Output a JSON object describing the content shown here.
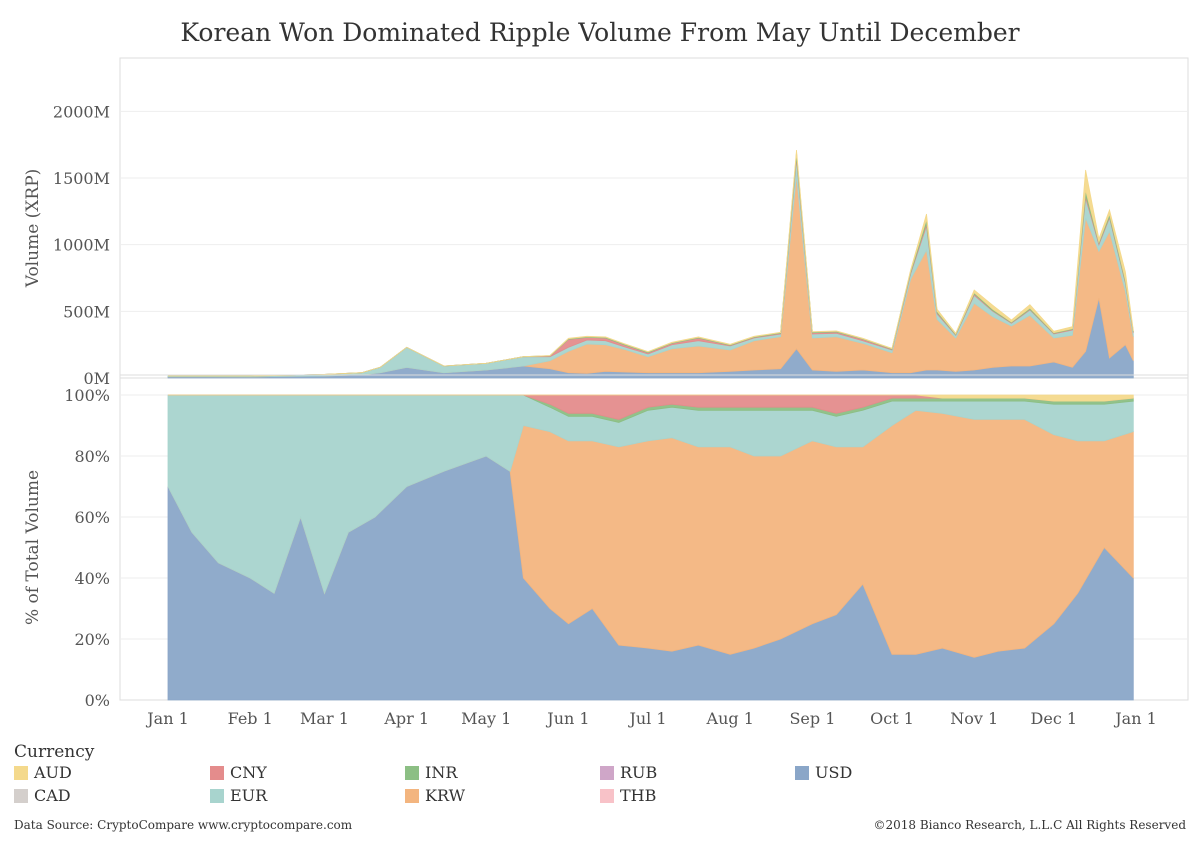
{
  "title": "Korean Won Dominated Ripple Volume From May Until December",
  "chart_data": [
    {
      "type": "area",
      "ylabel": "Volume (XRP)",
      "ytick_labels": [
        "0M",
        "500M",
        "1000M",
        "1500M",
        "2000M"
      ],
      "ylim": [
        0,
        2250
      ],
      "unit": "M",
      "x": [
        "2018-01-01",
        "2018-01-15",
        "2018-02-01",
        "2018-02-15",
        "2018-03-01",
        "2018-03-15",
        "2018-03-22",
        "2018-04-01",
        "2018-04-15",
        "2018-05-01",
        "2018-05-15",
        "2018-05-25",
        "2018-06-01",
        "2018-06-08",
        "2018-06-15",
        "2018-06-22",
        "2018-07-01",
        "2018-07-10",
        "2018-07-20",
        "2018-08-01",
        "2018-08-10",
        "2018-08-20",
        "2018-08-26",
        "2018-09-01",
        "2018-09-10",
        "2018-09-20",
        "2018-10-01",
        "2018-10-08",
        "2018-10-14",
        "2018-10-18",
        "2018-10-25",
        "2018-11-01",
        "2018-11-08",
        "2018-11-15",
        "2018-11-22",
        "2018-12-01",
        "2018-12-08",
        "2018-12-13",
        "2018-12-18",
        "2018-12-22",
        "2018-12-28",
        "2018-12-31"
      ],
      "series": [
        {
          "name": "USD",
          "color": "#8aa6c8",
          "values": [
            10,
            10,
            8,
            12,
            15,
            25,
            40,
            80,
            40,
            60,
            90,
            70,
            40,
            35,
            50,
            45,
            40,
            40,
            40,
            50,
            60,
            70,
            220,
            60,
            50,
            60,
            40,
            40,
            60,
            60,
            50,
            60,
            80,
            90,
            90,
            120,
            80,
            200,
            600,
            150,
            250,
            130
          ]
        },
        {
          "name": "KRW",
          "color": "#f3b57f",
          "values": [
            0,
            0,
            0,
            0,
            0,
            0,
            0,
            0,
            0,
            0,
            0,
            60,
            160,
            220,
            200,
            170,
            120,
            180,
            200,
            160,
            220,
            240,
            1300,
            240,
            260,
            200,
            150,
            700,
            900,
            380,
            250,
            500,
            380,
            300,
            380,
            180,
            240,
            1000,
            350,
            950,
            400,
            180
          ]
        },
        {
          "name": "EUR",
          "color": "#a8d4ce",
          "values": [
            5,
            5,
            7,
            8,
            12,
            15,
            40,
            150,
            50,
            50,
            70,
            30,
            30,
            30,
            30,
            20,
            20,
            30,
            40,
            30,
            20,
            20,
            120,
            30,
            25,
            20,
            20,
            40,
            180,
            40,
            20,
            60,
            40,
            20,
            40,
            30,
            40,
            150,
            50,
            100,
            60,
            30
          ]
        },
        {
          "name": "CNY",
          "color": "#e48c8c",
          "values": [
            0,
            0,
            0,
            0,
            0,
            0,
            0,
            0,
            0,
            0,
            0,
            5,
            60,
            20,
            20,
            15,
            10,
            10,
            20,
            5,
            5,
            5,
            20,
            10,
            10,
            10,
            5,
            10,
            20,
            10,
            5,
            10,
            5,
            5,
            5,
            5,
            5,
            20,
            10,
            10,
            10,
            5
          ]
        },
        {
          "name": "INR",
          "color": "#8cbf84",
          "values": [
            0,
            0,
            0,
            0,
            0,
            0,
            0,
            0,
            0,
            0,
            0,
            2,
            5,
            5,
            5,
            5,
            5,
            5,
            5,
            5,
            5,
            5,
            30,
            5,
            5,
            5,
            5,
            10,
            30,
            10,
            5,
            10,
            10,
            5,
            10,
            5,
            5,
            40,
            10,
            20,
            15,
            5
          ]
        },
        {
          "name": "AUD",
          "color": "#f4d98c",
          "values": [
            0,
            0,
            0,
            0,
            0,
            0,
            0,
            0,
            0,
            0,
            0,
            2,
            3,
            3,
            3,
            3,
            3,
            3,
            3,
            3,
            3,
            3,
            20,
            3,
            3,
            3,
            3,
            10,
            40,
            15,
            5,
            20,
            30,
            15,
            25,
            10,
            15,
            150,
            25,
            30,
            60,
            10
          ]
        }
      ]
    },
    {
      "type": "area",
      "ylabel": "% of Total Volume",
      "ytick_labels": [
        "0%",
        "20%",
        "40%",
        "60%",
        "80%",
        "100%"
      ],
      "ylim": [
        0,
        100
      ],
      "x_tick_labels": [
        "Jan 1",
        "Feb 1",
        "Mar 1",
        "Apr 1",
        "May 1",
        "Jun 1",
        "Jul 1",
        "Aug 1",
        "Sep 1",
        "Oct 1",
        "Nov 1",
        "Dec 1",
        "Jan 1"
      ],
      "x": [
        "2018-01-01",
        "2018-01-10",
        "2018-01-20",
        "2018-02-01",
        "2018-02-10",
        "2018-02-20",
        "2018-03-01",
        "2018-03-10",
        "2018-03-20",
        "2018-04-01",
        "2018-04-15",
        "2018-05-01",
        "2018-05-10",
        "2018-05-15",
        "2018-05-25",
        "2018-06-01",
        "2018-06-10",
        "2018-06-20",
        "2018-07-01",
        "2018-07-10",
        "2018-07-20",
        "2018-08-01",
        "2018-08-10",
        "2018-08-20",
        "2018-09-01",
        "2018-09-10",
        "2018-09-20",
        "2018-10-01",
        "2018-10-10",
        "2018-10-20",
        "2018-11-01",
        "2018-11-10",
        "2018-11-20",
        "2018-12-01",
        "2018-12-10",
        "2018-12-20",
        "2018-12-31"
      ],
      "series": [
        {
          "name": "USD",
          "color": "#8aa6c8",
          "values": [
            70,
            55,
            45,
            40,
            35,
            60,
            35,
            55,
            60,
            70,
            75,
            80,
            75,
            40,
            30,
            25,
            30,
            18,
            17,
            16,
            18,
            15,
            17,
            20,
            25,
            28,
            38,
            15,
            15,
            17,
            14,
            16,
            17,
            25,
            35,
            50,
            40
          ]
        },
        {
          "name": "KRW",
          "color": "#f3b57f",
          "values": [
            0,
            0,
            0,
            0,
            0,
            0,
            0,
            0,
            0,
            0,
            0,
            0,
            0,
            50,
            58,
            60,
            55,
            65,
            68,
            70,
            65,
            68,
            63,
            60,
            60,
            55,
            45,
            75,
            80,
            77,
            78,
            76,
            75,
            62,
            50,
            35,
            48
          ]
        },
        {
          "name": "EUR",
          "color": "#a8d4ce",
          "values": [
            30,
            45,
            55,
            60,
            65,
            40,
            65,
            45,
            40,
            30,
            25,
            20,
            25,
            10,
            8,
            8,
            8,
            8,
            10,
            10,
            12,
            12,
            15,
            15,
            10,
            10,
            12,
            8,
            3,
            4,
            6,
            6,
            6,
            10,
            12,
            12,
            10
          ]
        },
        {
          "name": "INR",
          "color": "#8cbf84",
          "values": [
            0,
            0,
            0,
            0,
            0,
            0,
            0,
            0,
            0,
            0,
            0,
            0,
            0,
            0,
            1,
            1,
            1,
            1,
            1,
            1,
            1,
            1,
            1,
            1,
            1,
            1,
            1,
            1,
            1,
            1,
            1,
            1,
            1,
            1,
            1,
            1,
            1
          ]
        },
        {
          "name": "CNY",
          "color": "#e48c8c",
          "values": [
            0,
            0,
            0,
            0,
            0,
            0,
            0,
            0,
            0,
            0,
            0,
            0,
            0,
            0,
            3,
            6,
            6,
            8,
            4,
            3,
            4,
            4,
            4,
            4,
            4,
            6,
            4,
            1,
            1,
            0,
            0,
            0,
            0,
            0,
            0,
            0,
            0
          ]
        },
        {
          "name": "AUD",
          "color": "#f4d98c",
          "values": [
            0,
            0,
            0,
            0,
            0,
            0,
            0,
            0,
            0,
            0,
            0,
            0,
            0,
            0,
            0,
            0,
            0,
            0,
            0,
            0,
            0,
            0,
            0,
            0,
            0,
            0,
            0,
            0,
            0,
            1,
            1,
            1,
            1,
            2,
            2,
            2,
            1
          ]
        }
      ]
    }
  ],
  "legend": {
    "title": "Currency",
    "items": [
      {
        "label": "AUD",
        "color": "#f4d98c"
      },
      {
        "label": "CAD",
        "color": "#d4cfcc"
      },
      {
        "label": "CNY",
        "color": "#e48c8c"
      },
      {
        "label": "EUR",
        "color": "#a8d4ce"
      },
      {
        "label": "INR",
        "color": "#8cbf84"
      },
      {
        "label": "KRW",
        "color": "#f3b57f"
      },
      {
        "label": "RUB",
        "color": "#cfa6c8"
      },
      {
        "label": "THB",
        "color": "#f8c2c8"
      },
      {
        "label": "USD",
        "color": "#8aa6c8"
      }
    ]
  },
  "footer": {
    "source": "Data Source: CryptoCompare www.cryptocompare.com",
    "copyright": "©2018 Bianco Research, L.L.C  All Rights Reserved"
  }
}
